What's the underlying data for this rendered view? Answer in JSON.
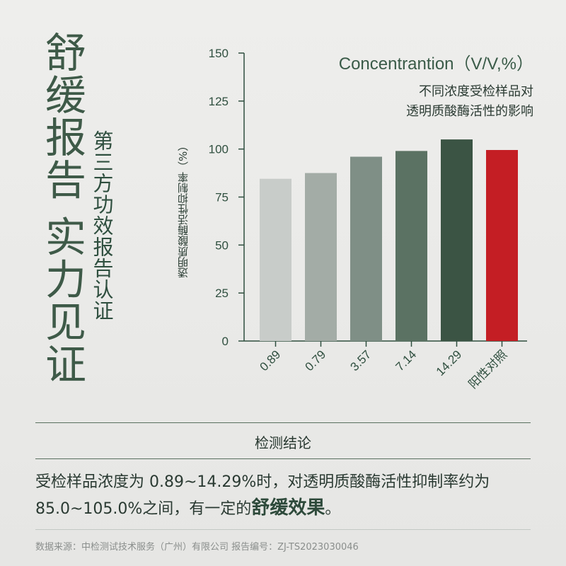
{
  "title": "舒缓报告 实力见证",
  "subtitle": "第三方功效报告认证",
  "chart_data": {
    "type": "bar",
    "ylabel": "透明质酸酶活性抑制率（%）",
    "yticks": [
      0,
      25,
      50,
      75,
      100,
      125,
      150
    ],
    "ylim": [
      0,
      150
    ],
    "categories": [
      "0.89",
      "0.79",
      "3.57",
      "7.14",
      "14.29",
      "阳性对照"
    ],
    "values": [
      84.5,
      87.5,
      96,
      99,
      105,
      99.5
    ],
    "colors": [
      "#c8ccc9",
      "#a3aca6",
      "#7f8f86",
      "#5b7263",
      "#3b5444",
      "#c41e24"
    ],
    "legend_title": "Concentrantion（V/V,%）",
    "legend_lines": [
      "不同浓度受检样品对",
      "透明质酸酶活性的影响"
    ]
  },
  "conclusion": {
    "header": "检测结论",
    "text_part1": "受检样品浓度为 0.89~14.29%时，对透明质酸酶活性抑制率约为85.0~105.0%之间，有一定的",
    "text_bold": "舒缓效果",
    "text_part2": "。"
  },
  "source": "数据来源：中检测试技术服务（广州）有限公司  报告编号：ZJ-TS2023030046"
}
